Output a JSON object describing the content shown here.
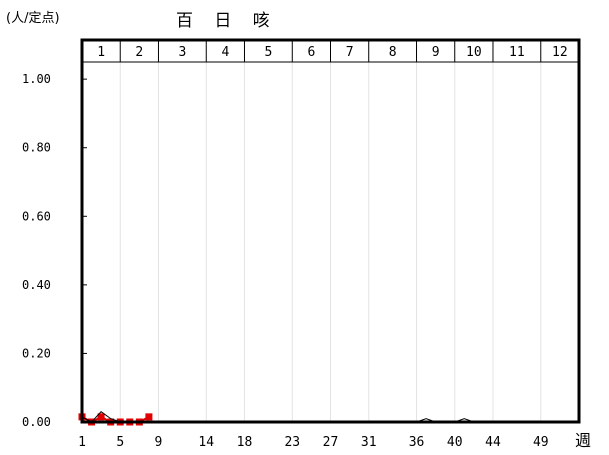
{
  "chart_data": {
    "type": "line",
    "title": "百 日 咳",
    "unit_label": "(人/定点)",
    "xlabel": "週",
    "ylim": [
      0,
      1.05
    ],
    "y_ticks": [
      "1.00",
      "0.80",
      "0.60",
      "0.40",
      "0.20",
      "0.00"
    ],
    "y_tick_values": [
      1.0,
      0.8,
      0.6,
      0.4,
      0.2,
      0.0
    ],
    "x_ticks": [
      1,
      5,
      9,
      14,
      18,
      23,
      27,
      31,
      36,
      40,
      44,
      49
    ],
    "x_range": [
      1,
      53
    ],
    "months": [
      "1",
      "2",
      "3",
      "4",
      "5",
      "6",
      "7",
      "8",
      "9",
      "10",
      "11",
      "12"
    ],
    "month_start_weeks": [
      1,
      5,
      9,
      14,
      18,
      23,
      27,
      31,
      36,
      40,
      44,
      49
    ],
    "series": [
      {
        "color": "#e00000",
        "marker": "square",
        "x": [
          1,
          2,
          3,
          4,
          5,
          6,
          7,
          8
        ],
        "values": [
          0.015,
          0.0,
          0.015,
          0.0,
          0.0,
          0.0,
          0.0,
          0.015
        ]
      },
      {
        "color": "#00a000",
        "marker": "none",
        "x": [
          1,
          2,
          3,
          4,
          5,
          6,
          7,
          8
        ],
        "values": [
          0.0,
          0.0,
          0.0,
          0.0,
          0.0,
          0.0,
          0.0,
          0.0
        ]
      },
      {
        "color": "#000000",
        "marker": "none",
        "x": [
          1,
          2,
          3,
          4,
          5,
          6,
          7,
          8,
          9,
          10,
          11,
          12,
          13,
          14,
          15,
          16,
          17,
          18,
          19,
          20,
          21,
          22,
          23,
          24,
          25,
          26,
          27,
          28,
          29,
          30,
          31,
          32,
          33,
          34,
          35,
          36,
          37,
          38,
          39,
          40,
          41,
          42,
          43,
          44,
          45,
          46,
          47,
          48,
          49,
          50,
          51,
          52
        ],
        "values": [
          0.015,
          0.0,
          0.03,
          0.01,
          0.0,
          0.0,
          0.0,
          0.0,
          0.0,
          0.0,
          0.0,
          0.0,
          0.0,
          0.0,
          0.0,
          0.0,
          0.0,
          0.0,
          0.0,
          0.0,
          0.0,
          0.0,
          0.0,
          0.0,
          0.0,
          0.0,
          0.0,
          0.0,
          0.0,
          0.0,
          0.0,
          0.0,
          0.0,
          0.0,
          0.0,
          0.0,
          0.01,
          0.0,
          0.0,
          0.0,
          0.01,
          0.0,
          0.0,
          0.0,
          0.0,
          0.0,
          0.0,
          0.0,
          0.0,
          0.0,
          0.0,
          0.0
        ]
      }
    ]
  }
}
